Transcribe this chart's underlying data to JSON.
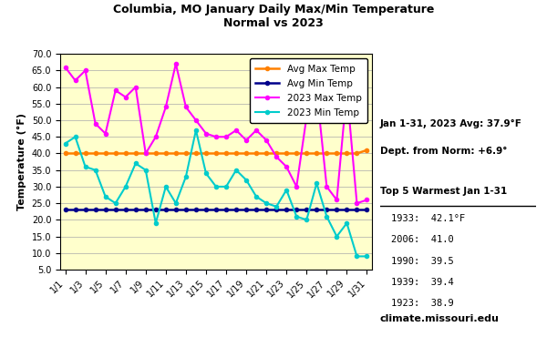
{
  "title": "Columbia, MO January Daily Max/Min Temperature\nNormal vs 2023",
  "ylabel": "Temperature (°F)",
  "xlabels": [
    "1/1",
    "1/3",
    "1/5",
    "1/7",
    "1/9",
    "1/11",
    "1/13",
    "1/15",
    "1/17",
    "1/19",
    "1/21",
    "1/23",
    "1/25",
    "1/27",
    "1/29",
    "1/31"
  ],
  "x_days": [
    1,
    3,
    5,
    7,
    9,
    11,
    13,
    15,
    17,
    19,
    21,
    23,
    25,
    27,
    29,
    31
  ],
  "ylim": [
    5.0,
    70.0
  ],
  "yticks": [
    5.0,
    10.0,
    15.0,
    20.0,
    25.0,
    30.0,
    35.0,
    40.0,
    45.0,
    50.0,
    55.0,
    60.0,
    65.0,
    70.0
  ],
  "avg_max": [
    40,
    40,
    40,
    40,
    40,
    40,
    40,
    40,
    40,
    40,
    40,
    40,
    40,
    40,
    40,
    40,
    40,
    40,
    40,
    40,
    40,
    40,
    40,
    40,
    40,
    40,
    40,
    40,
    40,
    40,
    41
  ],
  "avg_min": [
    23,
    23,
    23,
    23,
    23,
    23,
    23,
    23,
    23,
    23,
    23,
    23,
    23,
    23,
    23,
    23,
    23,
    23,
    23,
    23,
    23,
    23,
    23,
    23,
    23,
    23,
    23,
    23,
    23,
    23,
    23
  ],
  "max_2023": [
    66,
    62,
    65,
    49,
    46,
    59,
    57,
    60,
    40,
    45,
    54,
    67,
    54,
    50,
    46,
    45,
    45,
    47,
    44,
    47,
    44,
    39,
    36,
    30,
    51,
    59,
    30,
    26,
    59,
    25,
    26
  ],
  "min_2023": [
    43,
    45,
    36,
    35,
    27,
    25,
    30,
    37,
    35,
    19,
    30,
    25,
    33,
    47,
    34,
    30,
    30,
    35,
    32,
    27,
    25,
    24,
    29,
    21,
    20,
    31,
    21,
    15,
    19,
    9,
    9
  ],
  "avg_max_color": "#FF8000",
  "avg_min_color": "#00008B",
  "max_2023_color": "#FF00FF",
  "min_2023_color": "#00CCCC",
  "plot_bg": "#FFFFCC",
  "figure_bg": "#FFFFFF",
  "grid_color": "#AAAAAA",
  "annotation1": "Jan 1-31, 2023 Avg: 37.9°F",
  "annotation2": "Dept. from Norm: +6.9°",
  "top5_title": "Top 5 Warmest Jan 1-31",
  "top5": [
    "1933:  42.1°F",
    "2006:  41.0",
    "1990:  39.5",
    "1939:  39.4",
    "1923:  38.9"
  ],
  "website": "climate.missouri.edu"
}
